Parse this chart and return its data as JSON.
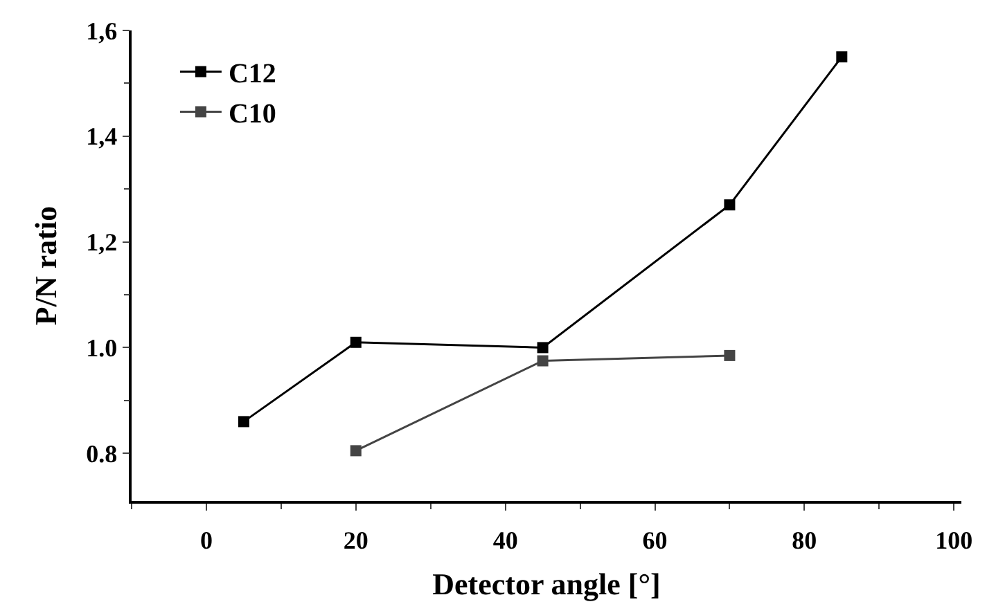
{
  "chart_data": {
    "type": "line",
    "xlabel": "Detector angle [°]",
    "ylabel": "P/N ratio",
    "series": [
      {
        "name": "C12",
        "color": "#000000",
        "x": [
          5,
          20,
          45,
          70,
          85
        ],
        "values": [
          0.86,
          1.01,
          1.0,
          1.27,
          1.55
        ]
      },
      {
        "name": "C10",
        "color": "#444444",
        "x": [
          20,
          45,
          70
        ],
        "values": [
          0.805,
          0.975,
          0.985
        ]
      }
    ],
    "xlim": [
      -10,
      101
    ],
    "xticks": [
      0,
      20,
      40,
      60,
      80,
      100
    ],
    "ylim": [
      0.71,
      1.6
    ],
    "yticks": [
      {
        "value": 0.8,
        "label": "0.8"
      },
      {
        "value": 1.0,
        "label": "1.0"
      },
      {
        "value": 1.2,
        "label": "1,2"
      },
      {
        "value": 1.4,
        "label": "1,4"
      },
      {
        "value": 1.6,
        "label": "1,6"
      }
    ],
    "legend": "top left",
    "marker": "square",
    "line_style": "solid"
  }
}
